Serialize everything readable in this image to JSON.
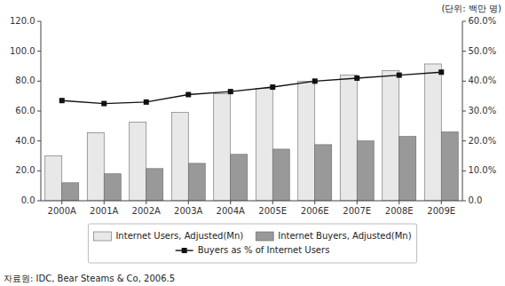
{
  "chart_data": {
    "type": "bar",
    "categories": [
      "2000A",
      "2001A",
      "2002A",
      "2003A",
      "2004A",
      "2005E",
      "2006E",
      "2007E",
      "2008E",
      "2009E"
    ],
    "series": [
      {
        "name": "Internet Users, Adjusted(Mn)",
        "color": "#e8e8e8",
        "values": [
          30.0,
          45.5,
          52.5,
          59.0,
          71.5,
          75.0,
          80.0,
          84.0,
          87.0,
          91.5
        ]
      },
      {
        "name": "Internet Buyers, Adjusted(Mn)",
        "color": "#999999",
        "values": [
          12.0,
          18.0,
          21.5,
          25.0,
          31.0,
          34.5,
          37.5,
          40.0,
          43.0,
          46.0
        ]
      },
      {
        "name": "Buyers as % of Internet Users",
        "type": "line",
        "axis": "y2",
        "color": "#111111",
        "marker": "square",
        "values": [
          33.5,
          32.5,
          33.0,
          35.5,
          36.5,
          38.0,
          40.0,
          41.0,
          42.0,
          43.0
        ]
      }
    ],
    "ylim": [
      0,
      120.0
    ],
    "yticks": [
      {
        "value": 0.0,
        "label": "0.0"
      },
      {
        "value": 20.0,
        "label": "20.0"
      },
      {
        "value": 40.0,
        "label": "40.0"
      },
      {
        "value": 60.0,
        "label": "60.0"
      },
      {
        "value": 80.0,
        "label": "80.0"
      },
      {
        "value": 100.0,
        "label": "100.0"
      },
      {
        "value": 120.0,
        "label": "120.0"
      }
    ],
    "y2lim": [
      0.0,
      60.0
    ],
    "y2ticks": [
      {
        "value": 0.0,
        "label": "0.0"
      },
      {
        "value": 10.0,
        "label": "10.0%"
      },
      {
        "value": 20.0,
        "label": "20.0%"
      },
      {
        "value": 30.0,
        "label": "30.0%"
      },
      {
        "value": 40.0,
        "label": "40.0%"
      },
      {
        "value": 50.0,
        "label": "50.0%"
      },
      {
        "value": 60.0,
        "label": "60.0%"
      }
    ],
    "annotations": [
      "(단위: 백만 명)",
      "자료원: IDC, Bear Steams & Co, 2006.5"
    ],
    "legend": "bottom",
    "grid": false
  }
}
